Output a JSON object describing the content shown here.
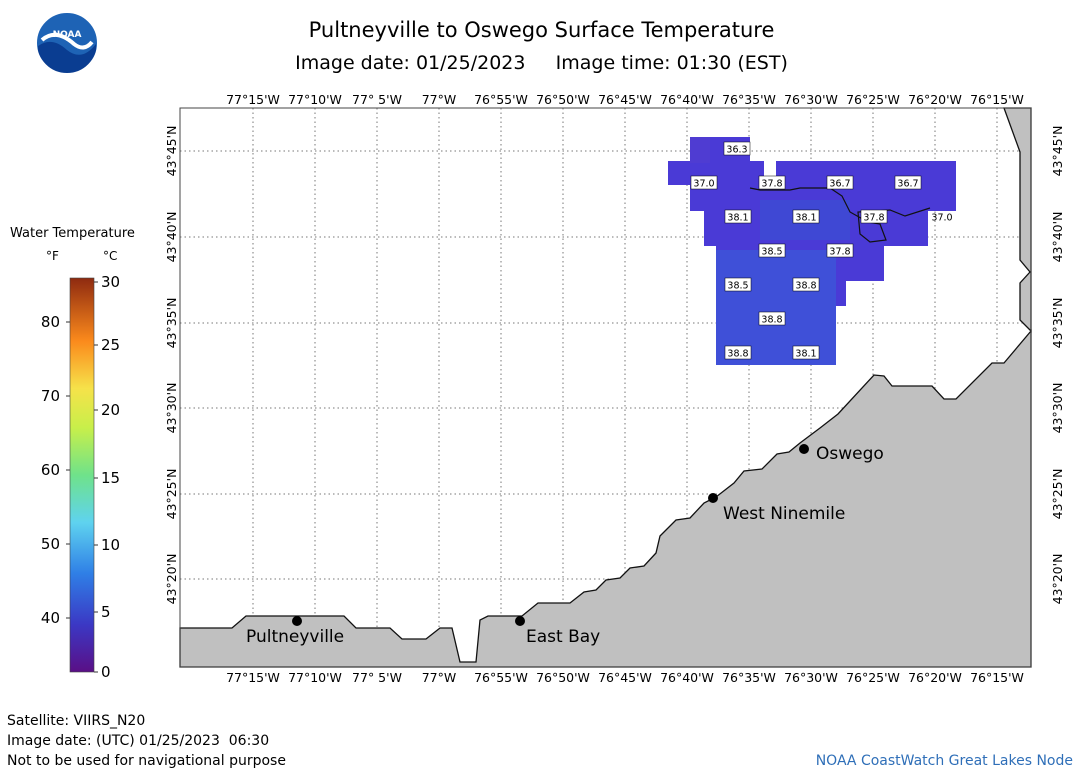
{
  "header": {
    "title": "Pultneyville to Oswego Surface Temperature",
    "image_date_label": "Image date: 01/25/2023",
    "image_time_label": "Image time: 01:30 (EST)"
  },
  "logo": {
    "text": "NOAA"
  },
  "legend": {
    "title": "Water Temperature",
    "unit_f": "°F",
    "unit_c": "°C",
    "f_ticks": [
      "80",
      "70",
      "60",
      "50",
      "40"
    ],
    "c_ticks": [
      "30",
      "25",
      "20",
      "15",
      "10",
      "5",
      "0"
    ]
  },
  "map": {
    "lon_labels": [
      "77°15'W",
      "77°10'W",
      "77° 5'W",
      "77°W",
      "76°55'W",
      "76°50'W",
      "76°45'W",
      "76°40'W",
      "76°35'W",
      "76°30'W",
      "76°25'W",
      "76°20'W",
      "76°15'W"
    ],
    "lat_labels": [
      "43°45'N",
      "43°40'N",
      "43°35'N",
      "43°30'N",
      "43°25'N",
      "43°20'N"
    ],
    "places": [
      {
        "name": "Pultneyville"
      },
      {
        "name": "East Bay"
      },
      {
        "name": "West Ninemile"
      },
      {
        "name": "Oswego"
      }
    ],
    "temps": [
      "36.3",
      "37.0",
      "37.8",
      "36.7",
      "36.7",
      "38.1",
      "38.1",
      "37.8",
      "37.0",
      "38.5",
      "37.8",
      "38.5",
      "38.8",
      "38.8",
      "38.8",
      "38.1"
    ],
    "colors": {
      "land": "#c0c0c0",
      "water": "#ffffff",
      "sst": "#4a3ad6"
    }
  },
  "footer": {
    "satellite": "Satellite: VIIRS_N20",
    "utc_date": "Image date: (UTC) 01/25/2023  06:30",
    "disclaimer": "Not to be used for navigational purpose",
    "credit": "NOAA CoastWatch Great Lakes Node"
  }
}
